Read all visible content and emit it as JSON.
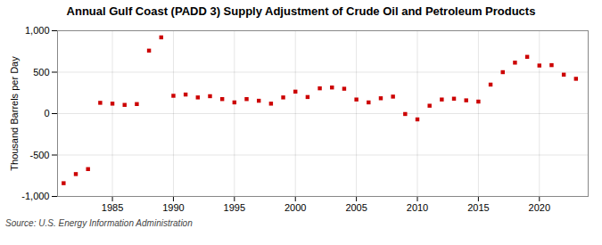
{
  "chart_data": {
    "type": "scatter",
    "title": "Annual Gulf Coast (PADD 3) Supply Adjustment of Crude Oil and Petroleum Products",
    "ylabel": "Thousand Barrels per Day",
    "annotations": [
      "Source: U.S. Energy Information Administration"
    ],
    "x": [
      1981,
      1982,
      1983,
      1984,
      1985,
      1986,
      1987,
      1988,
      1989,
      1990,
      1991,
      1992,
      1993,
      1994,
      1995,
      1996,
      1997,
      1998,
      1999,
      2000,
      2001,
      2002,
      2003,
      2004,
      2005,
      2006,
      2007,
      2008,
      2009,
      2010,
      2011,
      2012,
      2013,
      2014,
      2015,
      2016,
      2017,
      2018,
      2019,
      2020,
      2021,
      2022,
      2023
    ],
    "values": [
      -840,
      -730,
      -670,
      130,
      120,
      105,
      115,
      760,
      920,
      215,
      230,
      195,
      210,
      175,
      135,
      175,
      155,
      120,
      195,
      265,
      200,
      305,
      315,
      300,
      170,
      135,
      185,
      205,
      -5,
      -70,
      95,
      170,
      180,
      160,
      145,
      350,
      500,
      615,
      685,
      580,
      585,
      470,
      420
    ],
    "color": "#cc0000",
    "marker": "square",
    "xlim": [
      1980.5,
      2024
    ],
    "xticks": [
      1985,
      1990,
      1995,
      2000,
      2005,
      2010,
      2015,
      2020
    ],
    "ylim": [
      -1000,
      1000
    ],
    "yticks": [
      {
        "value": -1000,
        "label": "-1,000"
      },
      -500,
      0,
      500,
      {
        "value": 1000,
        "label": "1,000"
      }
    ],
    "grid": true
  }
}
